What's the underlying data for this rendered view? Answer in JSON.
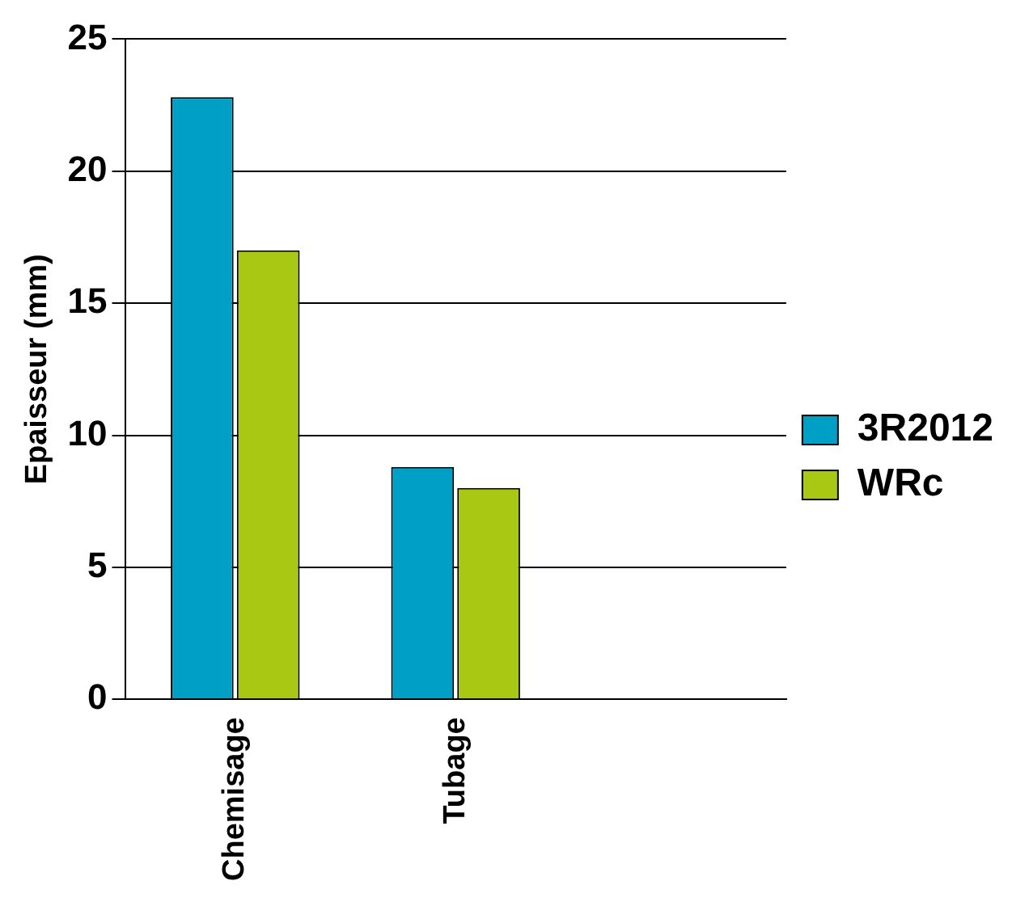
{
  "chart_data": {
    "type": "bar",
    "ylabel": "Epaisseur (mm)",
    "categories": [
      "Chemisage",
      "Tubage",
      null
    ],
    "series": [
      {
        "name": "3R2012",
        "color": "#00a0c6",
        "values": [
          22.8,
          8.8,
          null
        ]
      },
      {
        "name": "WRc",
        "color": "#a8c814",
        "values": [
          17,
          8,
          null
        ]
      }
    ],
    "ylim": [
      0,
      25
    ],
    "yticks": [
      0,
      5,
      10,
      15,
      20,
      25
    ],
    "grid": "y",
    "legend": "right"
  }
}
